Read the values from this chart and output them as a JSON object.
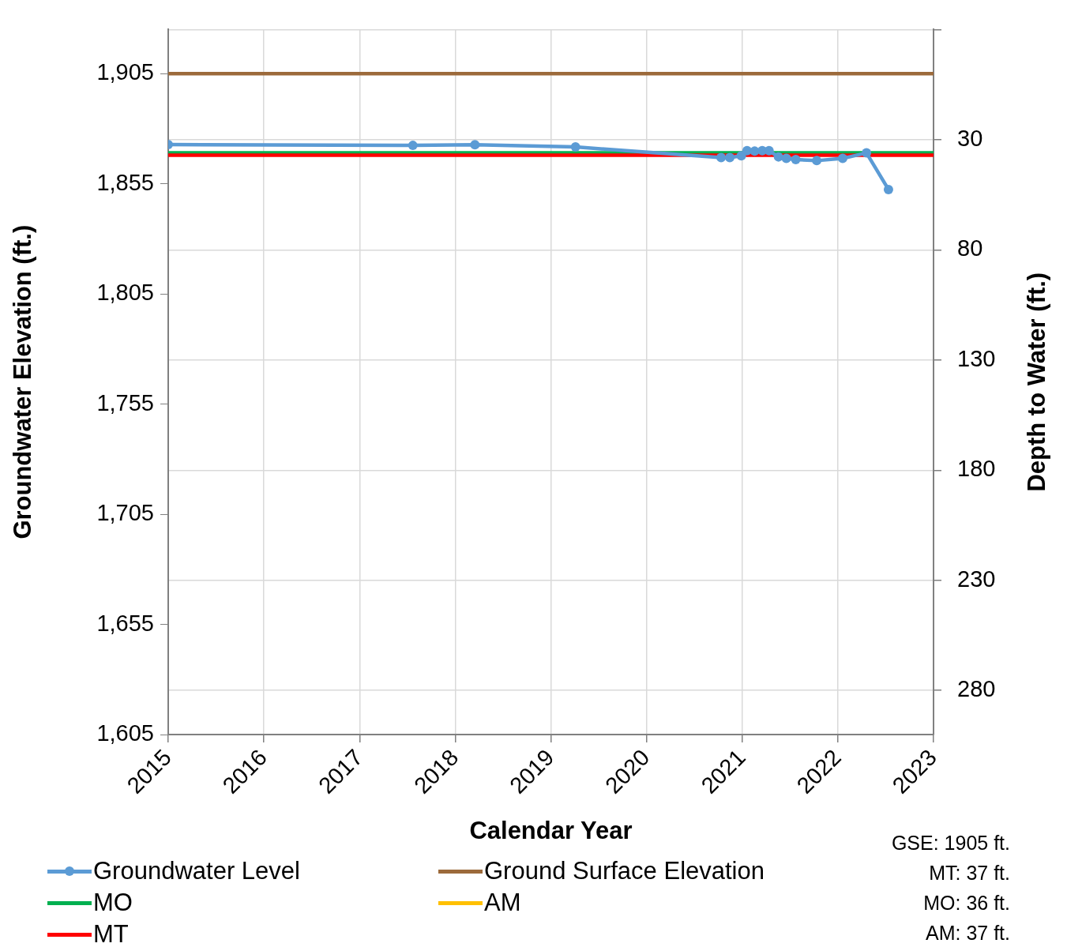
{
  "chart_data": {
    "type": "line",
    "xlabel": "Calendar Year",
    "ylabel": "Groundwater Elevation (ft.)",
    "y2label": "Depth to Water (ft.)",
    "xlim": [
      "2015",
      "2023"
    ],
    "xticks": [
      "2015",
      "2016",
      "2017",
      "2018",
      "2019",
      "2020",
      "2021",
      "2022",
      "2023"
    ],
    "ylim": [
      1605,
      1925
    ],
    "yticks": [
      {
        "value": 1605,
        "label": "1,605"
      },
      {
        "value": 1655,
        "label": "1,655"
      },
      {
        "value": 1705,
        "label": "1,705"
      },
      {
        "value": 1755,
        "label": "1,755"
      },
      {
        "value": 1805,
        "label": "1,805"
      },
      {
        "value": 1855,
        "label": "1,855"
      },
      {
        "value": 1905,
        "label": "1,905"
      }
    ],
    "y2lim": [
      300,
      -20
    ],
    "y2ticks": [
      {
        "value": -20,
        "label": null
      },
      30,
      80,
      130,
      180,
      230,
      280
    ],
    "grid": true,
    "legend": "bottom",
    "series": [
      {
        "name": "Groundwater Level",
        "color": "#5b9bd5",
        "marker": "circle",
        "x": [
          "2015-01-01",
          "2017-07-23",
          "2018-03-17",
          "2019-04-05",
          "2020-10-12",
          "2020-11-14",
          "2020-12-28",
          "2021-01-19",
          "2021-02-17",
          "2021-03-18",
          "2021-04-13",
          "2021-05-19",
          "2021-06-18",
          "2021-07-24",
          "2021-10-12",
          "2022-01-19",
          "2022-04-20",
          "2022-07-13"
        ],
        "values": [
          1872.8,
          1872.4,
          1872.7,
          1871.7,
          1866.9,
          1866.9,
          1867.7,
          1870.0,
          1869.8,
          1870.0,
          1870.0,
          1867.2,
          1866.5,
          1866.0,
          1865.5,
          1866.5,
          1869.0,
          1852.4
        ]
      },
      {
        "name": "Ground Surface Elevation",
        "color": "#9c6a3b",
        "marker": "none",
        "x": [
          "2015",
          "2023"
        ],
        "values": [
          1905,
          1905
        ]
      },
      {
        "name": "MO",
        "color": "#00b050",
        "marker": "none",
        "x": [
          "2015",
          "2023"
        ],
        "values": [
          1869,
          1869
        ]
      },
      {
        "name": "AM",
        "color": "#ffc000",
        "marker": "none"
      },
      {
        "name": "MT",
        "color": "#ff0000",
        "marker": "none",
        "x": [
          "2015",
          "2023"
        ],
        "values": [
          1868,
          1868
        ]
      }
    ],
    "annotations": [
      "GSE: 1905 ft.",
      "MT: 37 ft.",
      "MO: 36 ft.",
      "AM: 37 ft."
    ]
  }
}
